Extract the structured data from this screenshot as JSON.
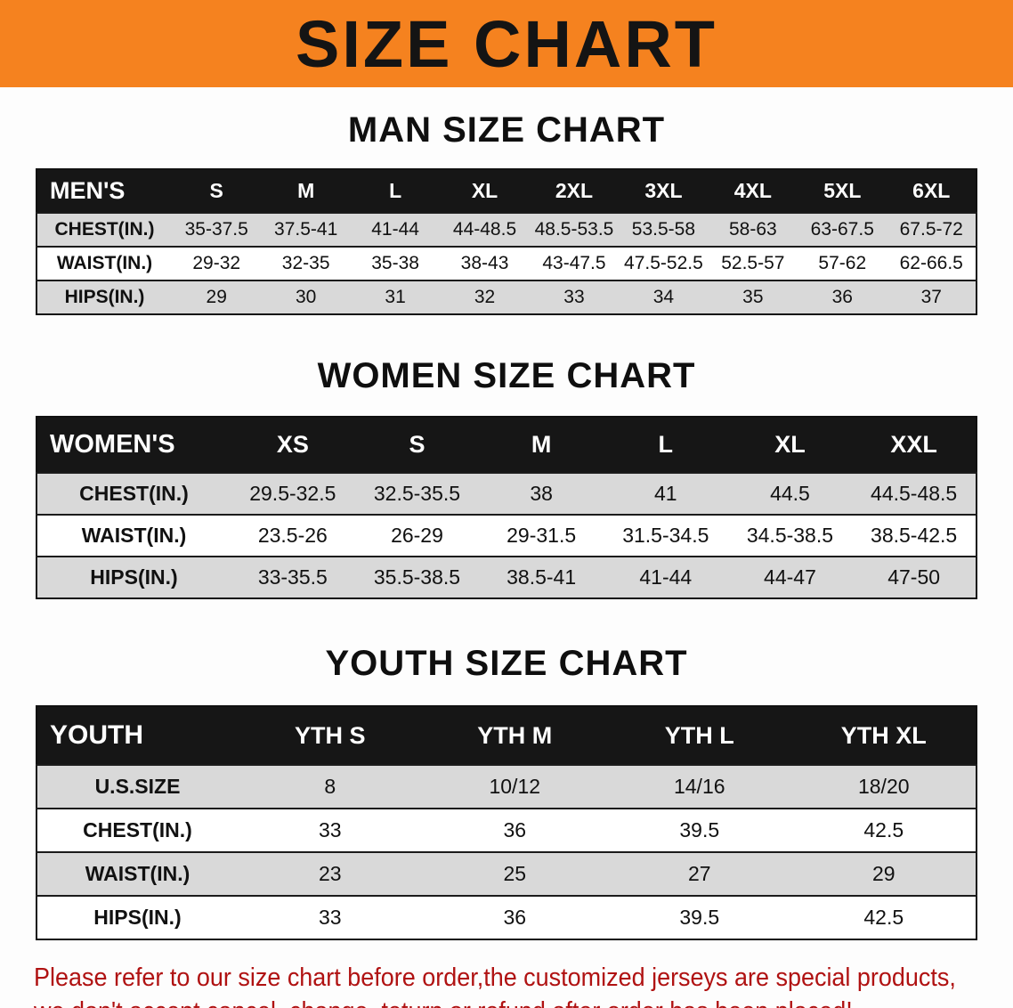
{
  "banner": {
    "title": "SIZE CHART"
  },
  "colors": {
    "banner_bg": "#f5821f",
    "table_header_bg": "#161616",
    "stripe": "#d9d9d9",
    "note_red": "#b01212"
  },
  "sections": [
    {
      "heading": "MAN SIZE CHART",
      "table": {
        "header": [
          "MEN'S",
          "S",
          "M",
          "L",
          "XL",
          "2XL",
          "3XL",
          "4XL",
          "5XL",
          "6XL"
        ],
        "rows": [
          {
            "label": "CHEST(IN.)",
            "values": [
              "35-37.5",
              "37.5-41",
              "41-44",
              "44-48.5",
              "48.5-53.5",
              "53.5-58",
              "58-63",
              "63-67.5",
              "67.5-72"
            ]
          },
          {
            "label": "WAIST(IN.)",
            "values": [
              "29-32",
              "32-35",
              "35-38",
              "38-43",
              "43-47.5",
              "47.5-52.5",
              "52.5-57",
              "57-62",
              "62-66.5"
            ]
          },
          {
            "label": "HIPS(IN.)",
            "values": [
              "29",
              "30",
              "31",
              "32",
              "33",
              "34",
              "35",
              "36",
              "37"
            ]
          }
        ]
      }
    },
    {
      "heading": "WOMEN SIZE CHART",
      "table": {
        "header": [
          "WOMEN'S",
          "XS",
          "S",
          "M",
          "L",
          "XL",
          "XXL"
        ],
        "rows": [
          {
            "label": "CHEST(IN.)",
            "values": [
              "29.5-32.5",
              "32.5-35.5",
              "38",
              "41",
              "44.5",
              "44.5-48.5"
            ]
          },
          {
            "label": "WAIST(IN.)",
            "values": [
              "23.5-26",
              "26-29",
              "29-31.5",
              "31.5-34.5",
              "34.5-38.5",
              "38.5-42.5"
            ]
          },
          {
            "label": "HIPS(IN.)",
            "values": [
              "33-35.5",
              "35.5-38.5",
              "38.5-41",
              "41-44",
              "44-47",
              "47-50"
            ]
          }
        ]
      }
    },
    {
      "heading": "YOUTH SIZE CHART",
      "table": {
        "header": [
          "YOUTH",
          "YTH S",
          "YTH M",
          "YTH L",
          "YTH XL"
        ],
        "rows": [
          {
            "label": "U.S.SIZE",
            "values": [
              "8",
              "10/12",
              "14/16",
              "18/20"
            ]
          },
          {
            "label": "CHEST(IN.)",
            "values": [
              "33",
              "36",
              "39.5",
              "42.5"
            ]
          },
          {
            "label": "WAIST(IN.)",
            "values": [
              "23",
              "25",
              "27",
              "29"
            ]
          },
          {
            "label": "HIPS(IN.)",
            "values": [
              "33",
              "36",
              "39.5",
              "42.5"
            ]
          }
        ]
      }
    }
  ],
  "note": {
    "line1": "Please refer to our size chart before order,the customized jerseys are special products,",
    "line2": "we don't accept cancel, change, teturn or refund after order has been placed!"
  }
}
